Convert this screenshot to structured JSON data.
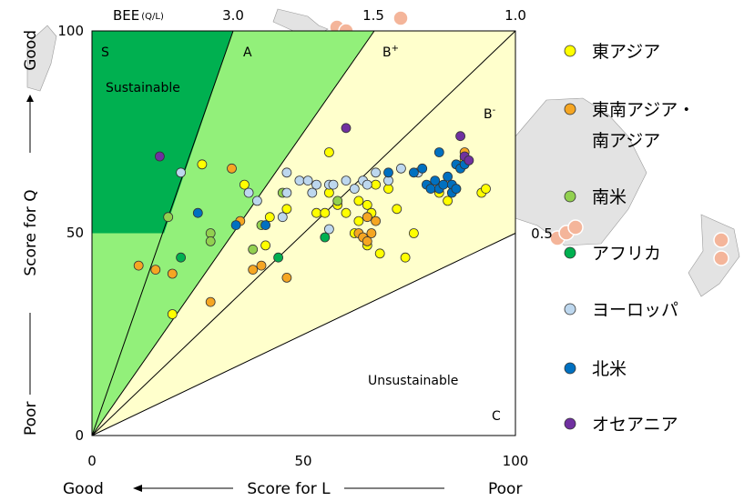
{
  "colors": {
    "region_s": "#00B050",
    "region_a": "#92F07A",
    "region_b": "#FFFFCC",
    "region_c": "#FFFFFF",
    "map_land": "#E3E3E3"
  },
  "top_axis": {
    "label": "BEE",
    "label_sub": "(Q/L)",
    "ticks": [
      {
        "label": "3.0",
        "bee": 3.0
      },
      {
        "label": "1.5",
        "bee": 1.5
      },
      {
        "label": "1.0",
        "bee": 1.0
      }
    ],
    "right_ticks": [
      {
        "label": "0.5",
        "bee": 0.5
      }
    ]
  },
  "region_labels": {
    "s_letter": "S",
    "s_word": "Sustainable",
    "a": "A",
    "b_plus_base": "B",
    "b_plus_sup": "+",
    "b_minus_base": "B",
    "b_minus_sup": "-",
    "c": "C",
    "unsustainable": "Unsustainable"
  },
  "y_axis": {
    "good": "Good",
    "title": "Score for Q",
    "poor": "Poor"
  },
  "x_axis": {
    "good": "Good",
    "title": "Score for L",
    "poor": "Poor"
  },
  "legend": [
    {
      "key": "east_asia",
      "label": "東アジア",
      "color": "#FFFF00"
    },
    {
      "key": "se_asia",
      "label": "東南アジア・\n南アジア",
      "color": "#F5A623"
    },
    {
      "key": "south_america",
      "label": "南米",
      "color": "#92D050"
    },
    {
      "key": "africa",
      "label": "アフリカ",
      "color": "#00B050"
    },
    {
      "key": "europe",
      "label": "ヨーロッパ",
      "color": "#BDD7EE"
    },
    {
      "key": "north_america",
      "label": "北米",
      "color": "#0070C0"
    },
    {
      "key": "oceania",
      "label": "オセアニア",
      "color": "#7030A0"
    }
  ],
  "chart_data": {
    "type": "scatter",
    "xlabel": "Score for L",
    "ylabel": "Score for Q",
    "xlim": [
      0,
      100
    ],
    "ylim": [
      0,
      100
    ],
    "x_ticks": [
      0,
      50,
      100
    ],
    "y_ticks": [
      0,
      50,
      100
    ],
    "top_axis": {
      "label": "BEE(Q/L)",
      "ticks": [
        3.0,
        1.5,
        1.0
      ]
    },
    "right_axis": {
      "ticks": [
        0.5
      ]
    },
    "regions": [
      {
        "name": "S",
        "label": "Sustainable"
      },
      {
        "name": "A"
      },
      {
        "name": "B+"
      },
      {
        "name": "B-"
      },
      {
        "name": "C",
        "label": "Unsustainable"
      }
    ],
    "series": [
      {
        "name": "東アジア",
        "key": "east_asia",
        "points": [
          [
            26,
            67
          ],
          [
            36,
            62
          ],
          [
            42,
            54
          ],
          [
            46,
            56
          ],
          [
            41,
            47
          ],
          [
            56,
            70
          ],
          [
            56,
            60
          ],
          [
            58,
            57
          ],
          [
            53,
            55
          ],
          [
            55,
            55
          ],
          [
            63,
            58
          ],
          [
            60,
            55
          ],
          [
            63,
            53
          ],
          [
            67,
            62
          ],
          [
            65,
            57
          ],
          [
            66,
            55
          ],
          [
            68,
            45
          ],
          [
            70,
            61
          ],
          [
            72,
            56
          ],
          [
            76,
            50
          ],
          [
            74,
            44
          ],
          [
            82,
            60
          ],
          [
            84,
            58
          ],
          [
            86,
            61
          ],
          [
            88,
            68
          ],
          [
            92,
            60
          ],
          [
            93,
            61
          ],
          [
            19,
            30
          ],
          [
            62,
            50
          ],
          [
            65,
            47
          ]
        ]
      },
      {
        "name": "東南アジア・南アジア",
        "key": "se_asia",
        "points": [
          [
            11,
            42
          ],
          [
            15,
            41
          ],
          [
            19,
            40
          ],
          [
            28,
            33
          ],
          [
            33,
            66
          ],
          [
            35,
            53
          ],
          [
            38,
            41
          ],
          [
            40,
            42
          ],
          [
            46,
            39
          ],
          [
            63,
            50
          ],
          [
            64,
            49
          ],
          [
            66,
            50
          ],
          [
            65,
            54
          ],
          [
            67,
            53
          ],
          [
            65,
            48
          ],
          [
            88,
            70
          ]
        ]
      },
      {
        "name": "南米",
        "key": "south_america",
        "points": [
          [
            18,
            54
          ],
          [
            28,
            50
          ],
          [
            28,
            48
          ],
          [
            38,
            46
          ],
          [
            40,
            52
          ],
          [
            45,
            60
          ],
          [
            58,
            58
          ]
        ]
      },
      {
        "name": "アフリカ",
        "key": "africa",
        "points": [
          [
            21,
            44
          ],
          [
            44,
            44
          ],
          [
            55,
            49
          ]
        ]
      },
      {
        "name": "ヨーロッパ",
        "key": "europe",
        "points": [
          [
            21,
            65
          ],
          [
            37,
            60
          ],
          [
            39,
            58
          ],
          [
            46,
            60
          ],
          [
            46,
            65
          ],
          [
            49,
            63
          ],
          [
            51,
            63
          ],
          [
            52,
            60
          ],
          [
            53,
            62
          ],
          [
            56,
            62
          ],
          [
            57,
            62
          ],
          [
            60,
            63
          ],
          [
            62,
            61
          ],
          [
            64,
            63
          ],
          [
            65,
            62
          ],
          [
            67,
            65
          ],
          [
            70,
            63
          ],
          [
            73,
            66
          ],
          [
            77,
            65
          ],
          [
            56,
            51
          ],
          [
            45,
            54
          ]
        ]
      },
      {
        "name": "北米",
        "key": "north_america",
        "points": [
          [
            25,
            55
          ],
          [
            34,
            52
          ],
          [
            41,
            52
          ],
          [
            70,
            65
          ],
          [
            76,
            65
          ],
          [
            78,
            66
          ],
          [
            79,
            62
          ],
          [
            80,
            61
          ],
          [
            81,
            63
          ],
          [
            82,
            61
          ],
          [
            83,
            62
          ],
          [
            84,
            64
          ],
          [
            85,
            62
          ],
          [
            86,
            67
          ],
          [
            87,
            66
          ],
          [
            88,
            67
          ],
          [
            82,
            70
          ],
          [
            85,
            60
          ],
          [
            86,
            61
          ]
        ]
      },
      {
        "name": "オセアニア",
        "key": "oceania",
        "points": [
          [
            16,
            69
          ],
          [
            60,
            76
          ],
          [
            87,
            74
          ],
          [
            88,
            69
          ],
          [
            89,
            68
          ]
        ]
      }
    ]
  }
}
